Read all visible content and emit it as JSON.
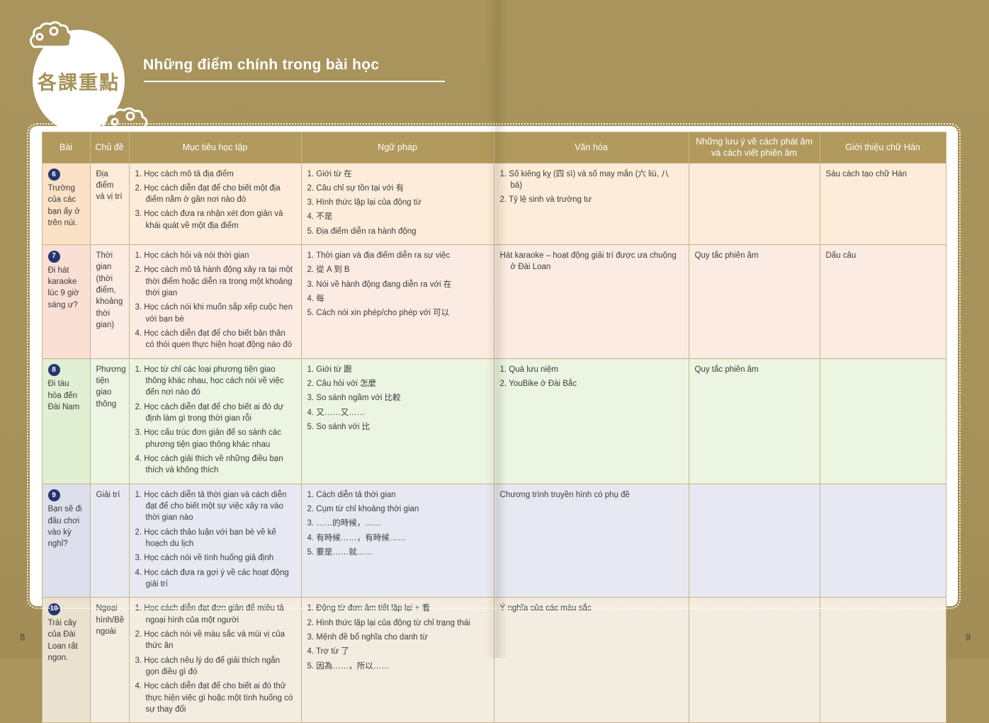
{
  "header": {
    "badge_cn": "各課重點",
    "title": "Những điểm chính trong bài học"
  },
  "table": {
    "columns": [
      "Bài",
      "Chủ đề",
      "Mục tiêu học tập",
      "Ngữ pháp",
      "Văn hóa",
      "Những lưu ý về cách phát âm và cách viết phiên âm",
      "Giới thiệu chữ Hán"
    ],
    "rows": [
      {
        "num": "6",
        "title": "Trường của các bạn ấy ở trên núi.",
        "topic": "Địa điểm và vị trí",
        "objectives": [
          "1. Học cách mô tả địa điểm",
          "2. Học cách diễn đạt để cho biết một địa điểm nằm ở gần nơi nào đó",
          "3. Học cách đưa ra nhận xét đơn giản và khái quát về một địa điểm"
        ],
        "grammar": [
          "1. Giới từ 在",
          "2. Câu chỉ sự tồn tại với 有",
          "3. Hình thức lặp lại của động từ",
          "4. 不是",
          "5. Địa điểm diễn ra hành động"
        ],
        "culture": [
          "1. Số kiêng kỵ (四 sì) và số may mắn (六 liù, 八 bā)",
          "2. Tỷ lệ sinh và trường tư"
        ],
        "pronunciation": [],
        "hanzi": [
          "Sáu cách tạo chữ Hán"
        ],
        "colors": {
          "row": "#fdecd9",
          "lesson": "#fbe1c6"
        }
      },
      {
        "num": "7",
        "title": "Đi hát karaoke lúc 9 giờ sáng ư?",
        "topic": "Thời gian (thời điểm, khoảng thời gian)",
        "objectives": [
          "1. Học cách hỏi và nói thời gian",
          "2. Học cách mô tả hành động xảy ra tại một thời điểm hoặc diễn ra trong một khoảng thời gian",
          "3. Học cách nói khi muốn sắp xếp cuộc hẹn với bạn bè",
          "4. Học cách diễn đạt để cho biết bản thân có thói quen thực hiện hoạt động nào đó"
        ],
        "grammar": [
          "1. Thời gian và địa điểm diễn ra sự việc",
          "2. 從 A 到 B",
          "3. Nói về hành động đang diễn ra với 在",
          "4. 每",
          "5. Cách nói xin phép/cho phép với 可以"
        ],
        "culture": [
          "Hát karaoke – hoạt động giải trí được ưa chuộng ở Đài Loan"
        ],
        "pronunciation": [
          "Quy tắc phiên âm"
        ],
        "hanzi": [
          "Dấu câu"
        ],
        "colors": {
          "row": "#fcebe3",
          "lesson": "#fadfd5"
        }
      },
      {
        "num": "8",
        "title": "Đi tàu hỏa đến Đài Nam",
        "topic": "Phương tiện giao thông",
        "objectives": [
          "1. Học từ chỉ các loại phương tiện giao thông khác nhau, học cách nói về việc đến nơi nào đó",
          "2. Học cách diễn đạt để cho biết ai đó dự định làm gì trong thời gian rỗi",
          "3. Học cấu trúc đơn giản để so sánh các phương tiện giao thông khác nhau",
          "4. Học cách giải thích về những điều bạn thích và không thích"
        ],
        "grammar": [
          "1. Giới từ 跟",
          "2. Câu hỏi với 怎麼",
          "3. So sánh ngầm với 比較",
          "4. 又……又……",
          "5. So sánh với 比"
        ],
        "culture": [
          "1. Quà lưu niệm",
          "2. YouBike ở Đài Bắc"
        ],
        "pronunciation": [
          "Quy tắc phiên âm"
        ],
        "hanzi": [],
        "colors": {
          "row": "#ebf5e2",
          "lesson": "#e1efd4"
        }
      },
      {
        "num": "9",
        "title": "Bạn sẽ đi đâu chơi vào kỳ nghỉ?",
        "topic": "Giải trí",
        "objectives": [
          "1. Học cách diễn tả thời gian và cách diễn đạt để cho biết một sự việc xảy ra vào thời gian nào",
          "2. Học cách thảo luận với bạn bè về kế hoạch du lịch",
          "3. Học cách nói về tình huống giả định",
          "4. Học cách đưa ra gợi ý về các hoạt động giải trí"
        ],
        "grammar": [
          "1. Cách diễn tả thời gian",
          "2. Cụm từ chỉ khoảng thời gian",
          "3. ……的時候，……",
          "4. 有時候……，有時候……",
          "5. 要是……就……"
        ],
        "culture": [
          "Chương trình truyền hình có phụ đề"
        ],
        "pronunciation": [],
        "hanzi": [],
        "colors": {
          "row": "#e7e8f2",
          "lesson": "#dddfec"
        }
      },
      {
        "num": "10",
        "title": "Trái cây của Đài Loan rất ngon.",
        "topic": "Ngoại hình/Bề ngoài",
        "objectives": [
          "1. Học cách diễn đạt đơn giản để miêu tả ngoại hình của một người",
          "2. Học cách nói về màu sắc và mùi vị của thức ăn",
          "3. Học cách nêu lý do để giải thích ngắn gọn điều gì đó",
          "4. Học cách diễn đạt để cho biết ai đó thử thực hiện việc gì hoặc một tình huống có sự thay đổi"
        ],
        "grammar": [
          "1. Động từ đơn âm tiết lặp lại + 看",
          "2. Hình thức lặp lại của động từ chỉ trạng thái",
          "3. Mệnh đề bổ nghĩa cho danh từ",
          "4. Trợ từ 了",
          "5. 因為……，所以……"
        ],
        "culture": [
          "Ý nghĩa của các màu sắc"
        ],
        "pronunciation": [],
        "hanzi": [],
        "colors": {
          "row": "#f2ece1",
          "lesson": "#eae1d0"
        }
      }
    ]
  },
  "footer": {
    "page_left": "8",
    "page_right": "9"
  },
  "colors": {
    "background_gold": "#a6925a",
    "table_header": "#b29a5e",
    "cell_border": "#c8b584",
    "badge_navy": "#23366f",
    "text": "#3c3c3c"
  }
}
